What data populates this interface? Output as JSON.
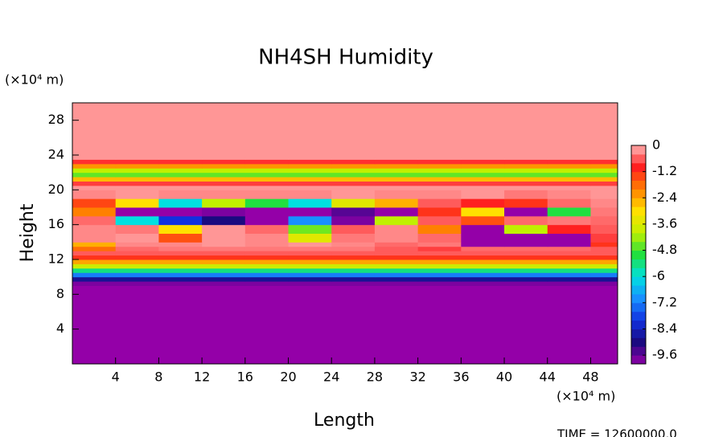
{
  "chart_data": {
    "type": "heatmap",
    "title": "NH4SH Humidity",
    "x_label": "Length",
    "y_label": "Height",
    "x_unit": "(×10⁴ m)",
    "y_unit": "(×10⁴ m)",
    "footer": "TIME = 12600000.0",
    "xlim": [
      0,
      50.5
    ],
    "ylim": [
      0,
      30
    ],
    "xticks": [
      4,
      8,
      12,
      16,
      20,
      24,
      28,
      32,
      36,
      40,
      44,
      48
    ],
    "yticks": [
      4,
      8,
      12,
      16,
      20,
      24,
      28
    ],
    "zlim": [
      -10,
      0
    ],
    "zticks": [
      0,
      -1.2,
      -2.4,
      -3.6,
      -4.8,
      -6,
      -7.2,
      -8.4,
      -9.6
    ],
    "colormap": [
      "#9400a8",
      "#1a0a80",
      "#1030e0",
      "#1890ff",
      "#00e0e0",
      "#20e040",
      "#c0f000",
      "#ffe000",
      "#ff8000",
      "#ff2020",
      "#ffb4b4"
    ],
    "x_edges": [
      0,
      4,
      8,
      12,
      16,
      20,
      24,
      28,
      32,
      36,
      40,
      44,
      48,
      50.5
    ],
    "y_edges": [
      0,
      9,
      9.5,
      10,
      10.5,
      11,
      11.5,
      12,
      12.5,
      13,
      13.5,
      14,
      15,
      16,
      17,
      18,
      19,
      20,
      20.5,
      21,
      21.5,
      22,
      22.5,
      23,
      23.5,
      30
    ],
    "z": [
      [
        -10,
        -10,
        -10,
        -10,
        -10,
        -10,
        -10,
        -10,
        -10,
        -10,
        -10,
        -10,
        -10
      ],
      [
        -9.8,
        -9.8,
        -9.8,
        -9.8,
        -9.8,
        -9.8,
        -9.8,
        -9.8,
        -9.8,
        -9.8,
        -9.8,
        -9.8,
        -9.8
      ],
      [
        -8.8,
        -8.8,
        -8.8,
        -8.8,
        -8.8,
        -8.8,
        -8.8,
        -8.8,
        -8.8,
        -8.8,
        -8.8,
        -8.8,
        -8.8
      ],
      [
        -7.2,
        -7.2,
        -7.2,
        -7.2,
        -7.2,
        -7.2,
        -7.2,
        -7.2,
        -7.2,
        -7.2,
        -7.2,
        -7.2,
        -7.2
      ],
      [
        -5.4,
        -5.4,
        -5.4,
        -5.4,
        -5.4,
        -5.4,
        -5.4,
        -5.4,
        -5.4,
        -5.4,
        -5.4,
        -5.4,
        -5.4
      ],
      [
        -3.8,
        -3.8,
        -3.8,
        -3.8,
        -3.8,
        -3.8,
        -3.8,
        -3.8,
        -3.8,
        -3.8,
        -3.8,
        -3.8,
        -3.8
      ],
      [
        -2.4,
        -2.4,
        -2.4,
        -2.4,
        -2.4,
        -2.4,
        -2.4,
        -2.4,
        -2.4,
        -2.4,
        -2.4,
        -2.4,
        -2.4
      ],
      [
        -1.2,
        -1.2,
        -1.2,
        -1.2,
        -1.2,
        -1.2,
        -1.2,
        -1.2,
        -1.2,
        -1.2,
        -1.2,
        -1.2,
        -1.2
      ],
      [
        -0.6,
        -0.6,
        -0.6,
        -0.6,
        -0.6,
        -0.6,
        -0.6,
        -0.6,
        -0.6,
        -0.6,
        -0.6,
        -0.6,
        -0.6
      ],
      [
        -1.8,
        -0.5,
        -0.4,
        -0.4,
        -0.4,
        -0.4,
        -0.4,
        -0.6,
        -0.8,
        -0.5,
        -0.5,
        -0.5,
        -0.6
      ],
      [
        -2.5,
        -0.3,
        -0.3,
        -0.2,
        -0.3,
        -0.2,
        -0.3,
        -0.5,
        -0.4,
        -10,
        -10,
        -10,
        -1.2
      ],
      [
        -0.3,
        -0.2,
        -1.5,
        -0.2,
        -0.3,
        -3.5,
        -0.4,
        -0.3,
        -0.5,
        -10,
        -10,
        -10,
        -0.8
      ],
      [
        -0.3,
        -0.4,
        -3,
        -0.2,
        -0.5,
        -4.5,
        -0.6,
        -0.3,
        -2,
        -10,
        -4,
        -1,
        -0.6
      ],
      [
        -0.5,
        -6,
        -8,
        -9,
        -10,
        -7,
        -9.8,
        -4,
        -0.6,
        -1.5,
        -0.5,
        -0.4,
        -0.5
      ],
      [
        -2,
        -10,
        -10,
        -9.8,
        -10,
        -10,
        -9.5,
        -10,
        -1.2,
        -3,
        -10,
        -5,
        -0.4
      ],
      [
        -1.4,
        -3,
        -6,
        -4,
        -5,
        -6,
        -3.5,
        -2.5,
        -0.6,
        -1,
        -1.2,
        -0.5,
        -0.3
      ],
      [
        -0.3,
        -0.2,
        -0.3,
        -0.3,
        -0.3,
        -0.3,
        -0.2,
        -0.3,
        -0.3,
        -0.2,
        -0.4,
        -0.3,
        -0.2
      ],
      [
        -0.2,
        -0.2,
        -0.2,
        -0.2,
        -0.2,
        -0.2,
        -0.2,
        -0.2,
        -0.2,
        -0.2,
        -0.2,
        -0.2,
        -0.2
      ],
      [
        -0.8,
        -0.8,
        -0.8,
        -0.8,
        -0.8,
        -0.8,
        -0.8,
        -0.8,
        -0.8,
        -0.8,
        -0.8,
        -0.8,
        -0.8
      ],
      [
        -2.6,
        -2.6,
        -2.6,
        -2.6,
        -2.6,
        -2.6,
        -2.6,
        -2.6,
        -2.6,
        -2.6,
        -2.6,
        -2.6,
        -2.6
      ],
      [
        -4.6,
        -4.6,
        -4.6,
        -4.6,
        -4.6,
        -4.6,
        -4.6,
        -4.6,
        -4.6,
        -4.6,
        -4.6,
        -4.6,
        -4.6
      ],
      [
        -4,
        -4,
        -4,
        -4,
        -4,
        -4,
        -4,
        -4,
        -4,
        -4,
        -4,
        -4,
        -4
      ],
      [
        -2.2,
        -2.2,
        -2.2,
        -2.2,
        -2.2,
        -2.2,
        -2.2,
        -2.2,
        -2.2,
        -2.2,
        -2.2,
        -2.2,
        -2.2
      ],
      [
        -0.9,
        -0.9,
        -0.9,
        -0.9,
        -0.9,
        -0.9,
        -0.9,
        -0.9,
        -0.9,
        -0.9,
        -0.9,
        -0.9,
        -0.9
      ],
      [
        -0.2,
        -0.2,
        -0.2,
        -0.2,
        -0.2,
        -0.2,
        -0.2,
        -0.2,
        -0.2,
        -0.2,
        -0.2,
        -0.2,
        -0.2
      ]
    ]
  }
}
